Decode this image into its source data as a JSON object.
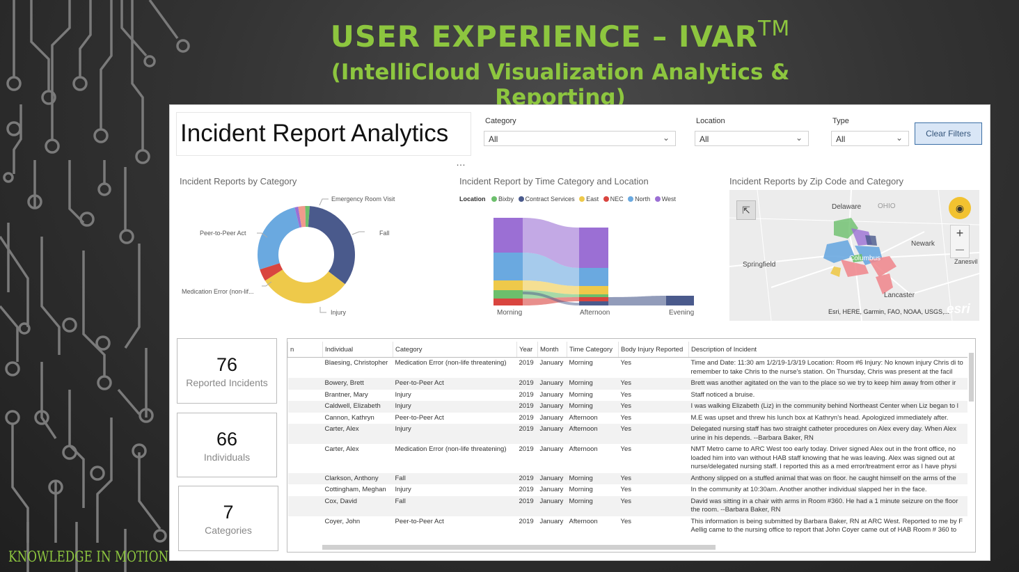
{
  "slide": {
    "title": "USER EXPERIENCE – IVAR",
    "title_mark": "TM",
    "subtitle": "(IntelliCloud Visualization Analytics & Reporting)",
    "brand": "KNOWLEDGE IN MOTION",
    "accent_color": "#8dc63f"
  },
  "dashboard": {
    "title": "Incident Report Analytics",
    "more_icon": "…",
    "filters": [
      {
        "label": "Category",
        "value": "All"
      },
      {
        "label": "Location",
        "value": "All"
      },
      {
        "label": "Type",
        "value": "All"
      }
    ],
    "clear_filters_label": "Clear Filters",
    "donut": {
      "title": "Incident Reports by Category",
      "labels": [
        "Emergency Room Visit",
        "Fall",
        "Injury",
        "Medication Error (non-lif...",
        "Peer-to-Peer Act"
      ]
    },
    "sankey": {
      "title": "Incident Report by Time Category and Location",
      "legend_title": "Location",
      "legend": [
        {
          "name": "Bixby",
          "color": "#6cbf6c"
        },
        {
          "name": "Contract Services",
          "color": "#4a5a8c"
        },
        {
          "name": "East",
          "color": "#eec94a"
        },
        {
          "name": "NEC",
          "color": "#d9453f"
        },
        {
          "name": "North",
          "color": "#6aa9e0"
        },
        {
          "name": "West",
          "color": "#9b6fd4"
        }
      ],
      "axis": [
        "Morning",
        "Afternoon",
        "Evening"
      ]
    },
    "map": {
      "title": "Incident Reports by Zip Code and Category",
      "labels": {
        "delaware": "Delaware",
        "ohio": "OHIO",
        "newark": "Newark",
        "springfield": "Springfield",
        "zanesville": "Zanesvil",
        "lancaster": "Lancaster",
        "columbus": "Columbus"
      },
      "attribution": "Esri, HERE, Garmin, FAO, NOAA, USGS,...",
      "esri": "esri",
      "zoom_in": "+",
      "zoom_out": "—"
    },
    "kpis": [
      {
        "value": "76",
        "label": "Reported Incidents"
      },
      {
        "value": "66",
        "label": "Individuals"
      },
      {
        "value": "7",
        "label": "Categories"
      }
    ],
    "table": {
      "columns": [
        "n",
        "Individual",
        "Category",
        "Year",
        "Month",
        "Time Category",
        "Body Injury Reported",
        "Description of Incident"
      ],
      "rows": [
        {
          "individual": "Blaesing, Christopher",
          "category": "Medication Error (non-life threatening)",
          "year": "2019",
          "month": "January",
          "time": "Morning",
          "injury": "Yes",
          "desc": "Time and Date: 11:30 am 1/2/19-1/3/19 Location: Room #6 Injury: No known injury Chris di to remember to take Chris to the nurse's station. On Thursday, Chris was present at the facil"
        },
        {
          "individual": "Bowery, Brett",
          "category": "Peer-to-Peer Act",
          "year": "2019",
          "month": "January",
          "time": "Morning",
          "injury": "Yes",
          "desc": "Brett was another agitated on the van to the place so we try to keep him away from other ir"
        },
        {
          "individual": "Brantner, Mary",
          "category": "Injury",
          "year": "2019",
          "month": "January",
          "time": "Morning",
          "injury": "Yes",
          "desc": "Staff noticed a bruise."
        },
        {
          "individual": "Caldwell, Elizabeth",
          "category": "Injury",
          "year": "2019",
          "month": "January",
          "time": "Morning",
          "injury": "Yes",
          "desc": "I was walking Elizabeth (Liz) in the community behind Northeast Center when Liz began to l"
        },
        {
          "individual": "Cannon, Kathryn",
          "category": "Peer-to-Peer Act",
          "year": "2019",
          "month": "January",
          "time": "Afternoon",
          "injury": "Yes",
          "desc": "M.E was upset and threw his lunch box at Kathryn's head. Apologized immediately after."
        },
        {
          "individual": "Carter, Alex",
          "category": "Injury",
          "year": "2019",
          "month": "January",
          "time": "Afternoon",
          "injury": "Yes",
          "desc": "Delegated nursing staff has two straight catheter procedures on Alex every day. When Alex urine in his depends. --Barbara Baker, RN"
        },
        {
          "individual": "Carter, Alex",
          "category": "Medication Error (non-life threatening)",
          "year": "2019",
          "month": "January",
          "time": "Afternoon",
          "injury": "Yes",
          "desc": "NMT Metro came to ARC West too early today. Driver signed Alex out in the front office, no loaded him into van without HAB staff knowing that he was leaving. Alex was signed out at nurse/delegated nursing staff. I reported this as a med error/treatment error as I have physi"
        },
        {
          "individual": "Clarkson, Anthony",
          "category": "Fall",
          "year": "2019",
          "month": "January",
          "time": "Morning",
          "injury": "Yes",
          "desc": "Anthony slipped on a stuffed animal that was on floor. he caught himself on the arms of the"
        },
        {
          "individual": "Cottingham, Meghan",
          "category": "Injury",
          "year": "2019",
          "month": "January",
          "time": "Morning",
          "injury": "Yes",
          "desc": "In the community at 10:30am. Another another individual slapped her in the face."
        },
        {
          "individual": "Cox, David",
          "category": "Fall",
          "year": "2019",
          "month": "January",
          "time": "Morning",
          "injury": "Yes",
          "desc": "David was sitting in a chair with arms in Room #360. He had a 1 minute seizure on the floor the room. --Barbara Baker, RN"
        },
        {
          "individual": "Coyer, John",
          "category": "Peer-to-Peer Act",
          "year": "2019",
          "month": "January",
          "time": "Afternoon",
          "injury": "Yes",
          "desc": "This information is being submitted by Barbara Baker, RN at ARC West. Reported to me by F Aellig came to the nursing office to report that John Coyer came out of HAB Room # 360 to"
        }
      ]
    }
  }
}
